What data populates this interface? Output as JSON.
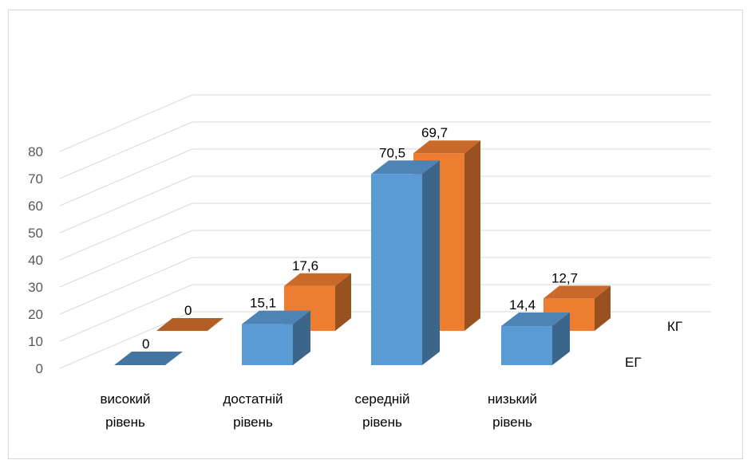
{
  "chart_data": {
    "type": "bar",
    "categories": [
      [
        "високий",
        "рівень"
      ],
      [
        "достатній",
        "рівень"
      ],
      [
        "середній",
        "рівень"
      ],
      [
        "низький",
        "рівень"
      ]
    ],
    "series": [
      {
        "name": "ЕГ",
        "values": [
          0,
          15.1,
          70.5,
          14.4
        ],
        "labels": [
          "0",
          "15,1",
          "70,5",
          "14,4"
        ],
        "color": "#5b9bd5"
      },
      {
        "name": "КГ",
        "values": [
          0,
          17.6,
          69.7,
          12.7
        ],
        "labels": [
          "0",
          "17,6",
          "69,7",
          "12,7"
        ],
        "color": "#ed7d31"
      }
    ],
    "yticks": [
      "0",
      "10",
      "20",
      "30",
      "40",
      "50",
      "60",
      "70",
      "80"
    ],
    "ylim": [
      0,
      80
    ],
    "grid": true,
    "style": "3d-column"
  }
}
